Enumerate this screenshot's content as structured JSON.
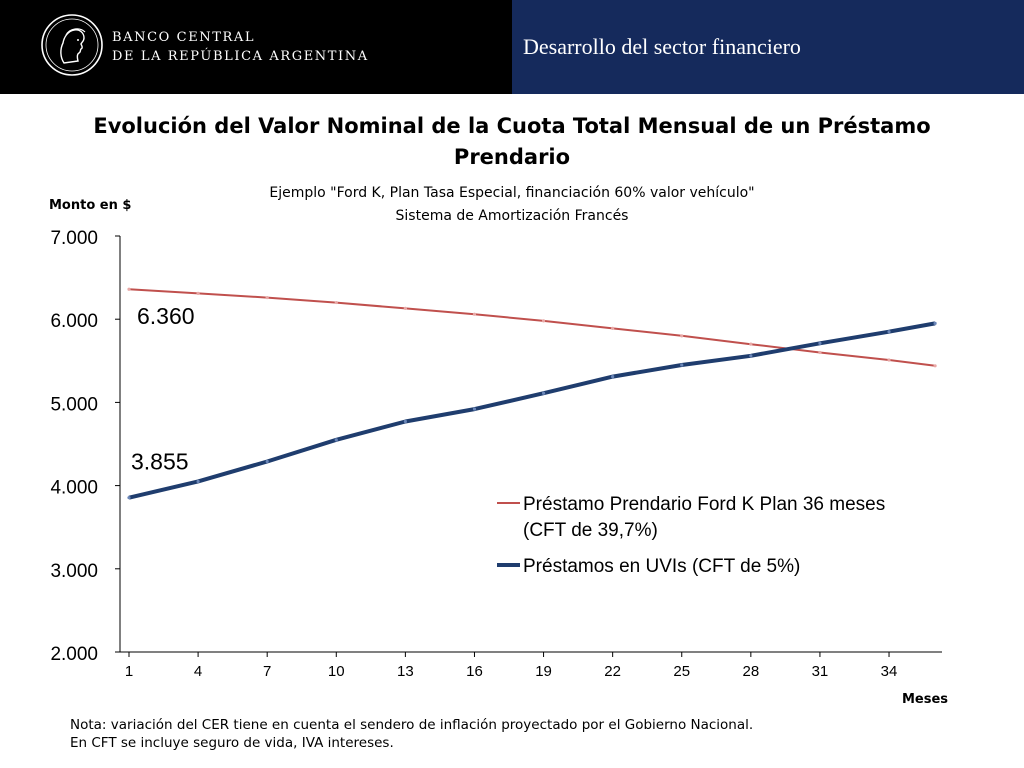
{
  "header": {
    "bank_name_line1": "BANCO CENTRAL",
    "bank_name_line2": "DE LA REPÚBLICA ARGENTINA",
    "section_title": "Desarrollo del sector financiero",
    "logo_icon": "bcra-seal-icon"
  },
  "colors": {
    "header_left_bg": "#000000",
    "header_right_bg": "#152a5c",
    "series_prendario": "#c0504d",
    "series_uvi": "#1f3d6e"
  },
  "chart_data": {
    "type": "line",
    "title": "Evolución del Valor Nominal de la Cuota Total Mensual de un Préstamo Prendario",
    "subtitle_line1": "Ejemplo \"Ford K, Plan Tasa Especial, financiación 60% valor vehículo\"",
    "subtitle_line2": "Sistema de Amortización Francés",
    "xlabel": "Meses",
    "ylabel": "Monto en $",
    "xlim": [
      1,
      36
    ],
    "ylim": [
      2000,
      7000
    ],
    "x_ticks": [
      1,
      4,
      7,
      10,
      13,
      16,
      19,
      22,
      25,
      28,
      31,
      34
    ],
    "x_tick_labels": [
      "1",
      "4",
      "7",
      "10",
      "13",
      "16",
      "19",
      "22",
      "25",
      "28",
      "31",
      "34"
    ],
    "y_ticks": [
      2000,
      3000,
      4000,
      5000,
      6000,
      7000
    ],
    "y_tick_labels": [
      "2.000",
      "3.000",
      "4.000",
      "5.000",
      "6.000",
      "7.000"
    ],
    "grid": false,
    "legend_position": "center-right",
    "series": [
      {
        "name_line1": "Préstamo Prendario Ford K Plan 36 meses",
        "name_line2": "(CFT de 39,7%)",
        "color": "#c0504d",
        "x": [
          1,
          4,
          7,
          10,
          13,
          16,
          19,
          22,
          25,
          28,
          31,
          34,
          36
        ],
        "values": [
          6360,
          6310,
          6260,
          6200,
          6130,
          6060,
          5980,
          5890,
          5800,
          5700,
          5600,
          5510,
          5440
        ]
      },
      {
        "name_line1": "Préstamos en UVIs (CFT de 5%)",
        "name_line2": "",
        "color": "#1f3d6e",
        "x": [
          1,
          4,
          7,
          10,
          13,
          16,
          19,
          22,
          25,
          28,
          31,
          34,
          36
        ],
        "values": [
          3855,
          4050,
          4290,
          4550,
          4770,
          4920,
          5110,
          5310,
          5450,
          5560,
          5710,
          5850,
          5950
        ]
      }
    ],
    "annotations": [
      {
        "text": "6.360",
        "x": 1,
        "y": 6360
      },
      {
        "text": "3.855",
        "x": 1,
        "y": 3855
      }
    ]
  },
  "note": {
    "line1": "Nota: variación del CER tiene en cuenta el sendero de inflación proyectado por el Gobierno Nacional.",
    "line2": "En CFT se incluye seguro de vida, IVA intereses."
  }
}
